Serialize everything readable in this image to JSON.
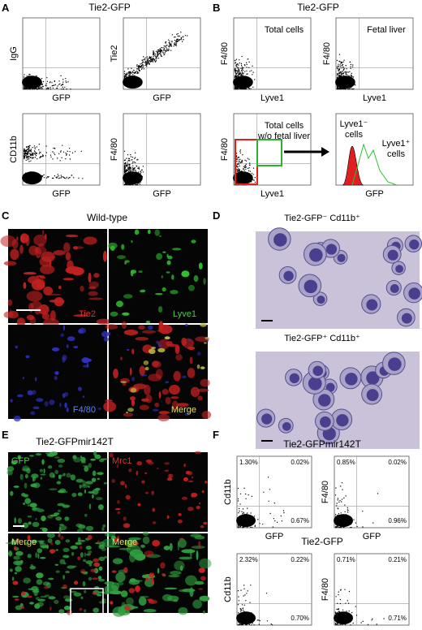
{
  "panel_A": {
    "letter": "A",
    "title": "Tie2-GFP",
    "plots": [
      {
        "ylabel": "IgG",
        "xlabel": "GFP"
      },
      {
        "ylabel": "Tie2",
        "xlabel": "GFP"
      },
      {
        "ylabel": "CD11b",
        "xlabel": "GFP"
      },
      {
        "ylabel": "F4/80",
        "xlabel": "GFP"
      }
    ]
  },
  "panel_B": {
    "letter": "B",
    "title": "Tie2-GFP",
    "plots": [
      {
        "ylabel": "F4/80",
        "xlabel": "Lyve1",
        "label": [
          "Total cells"
        ]
      },
      {
        "ylabel": "F4/80",
        "xlabel": "Lyve1",
        "label": [
          "Fetal liver"
        ]
      },
      {
        "ylabel": "F4/80",
        "xlabel": "Lyve1",
        "label": [
          "Total cells",
          "w/o fetal liver"
        ]
      }
    ],
    "histogram": {
      "xlabel": "GFP",
      "negative": [
        "Lyve1⁻",
        "cells"
      ],
      "positive": [
        "Lyve1⁺",
        "cells"
      ]
    }
  },
  "panel_C": {
    "letter": "C",
    "title": "Wild-type",
    "images": [
      "Tie2",
      "Lyve1",
      "F4/80",
      "Merge"
    ]
  },
  "panel_D": {
    "letter": "D",
    "images": [
      "Tie2-GFP⁻ Cd11b⁺",
      "Tie2-GFP⁺ Cd11b⁺"
    ]
  },
  "panel_E": {
    "letter": "E",
    "title": "Tie2-GFPmir142T",
    "images": [
      "GFP",
      "Mrc1",
      "Merge",
      "Merge"
    ]
  },
  "panel_F": {
    "letter": "F",
    "groups": [
      {
        "title": "Tie2-GFPmir142T",
        "plots": [
          {
            "ylabel": "Cd11b",
            "xlabel": "GFP",
            "quadrants": [
              "1.30%",
              "0.02%",
              "0.67%"
            ]
          },
          {
            "ylabel": "F4/80",
            "xlabel": "GFP",
            "quadrants": [
              "0.85%",
              "0.02%",
              "0.96%"
            ]
          }
        ]
      },
      {
        "title": "Tie2-GFP",
        "plots": [
          {
            "ylabel": "Cd11b",
            "xlabel": "GFP",
            "quadrants": [
              "2.32%",
              "0.22%",
              "0.70%"
            ]
          },
          {
            "ylabel": "F4/80",
            "xlabel": "GFP",
            "quadrants": [
              "0.71%",
              "0.21%",
              "0.71%"
            ]
          }
        ]
      }
    ]
  }
}
